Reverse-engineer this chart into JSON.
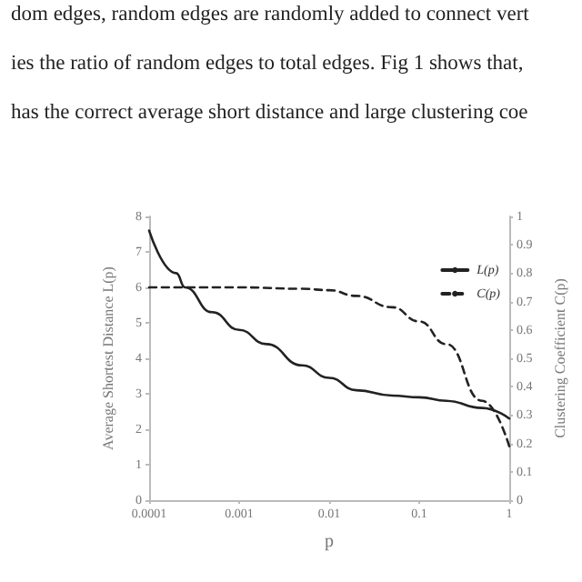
{
  "chart_data": {
    "type": "line",
    "annotations": [
      "dom edges, random edges are randomly added to connect vert",
      "ies the ratio of random edges to total edges. Fig 1 shows that,",
      "has the correct average short distance and large clustering coe"
    ],
    "xlabel": "p",
    "ylabel": "Average Shortest Distance L(p)",
    "y2label": "Clustering Coefficient C(p)",
    "log": "x",
    "xlim": [
      0.0001,
      1
    ],
    "xticks": [
      0.0001,
      0.001,
      0.01,
      0.1,
      1
    ],
    "ylim": [
      0,
      8
    ],
    "yticks": [
      0,
      1,
      2,
      3,
      4,
      5,
      6,
      7,
      8
    ],
    "y2lim": [
      0,
      1
    ],
    "y2ticks": [
      0,
      0.1,
      0.2,
      0.3,
      0.4,
      0.5,
      0.6,
      0.7,
      0.8,
      0.9,
      1
    ],
    "grid": false,
    "legend": "top right",
    "marker": "none",
    "series": [
      {
        "name": "L(p)",
        "color": "#222222",
        "line_style": "solid",
        "x": [
          0.0001,
          0.0002,
          0.00025,
          0.0005,
          0.001,
          0.002,
          0.005,
          0.01,
          0.02,
          0.05,
          0.1,
          0.2,
          0.5,
          1
        ],
        "values": [
          7.6,
          6.4,
          6.0,
          5.3,
          4.8,
          4.4,
          3.8,
          3.45,
          3.1,
          2.95,
          2.9,
          2.8,
          2.6,
          2.3
        ]
      },
      {
        "name": "C(p)",
        "color": "#222222",
        "line_style": "dashed",
        "axis": "y2",
        "x": [
          0.0001,
          0.001,
          0.005,
          0.01,
          0.02,
          0.05,
          0.1,
          0.2,
          0.5,
          1
        ],
        "values": [
          0.75,
          0.75,
          0.745,
          0.74,
          0.72,
          0.68,
          0.63,
          0.55,
          0.35,
          0.19
        ]
      }
    ]
  }
}
